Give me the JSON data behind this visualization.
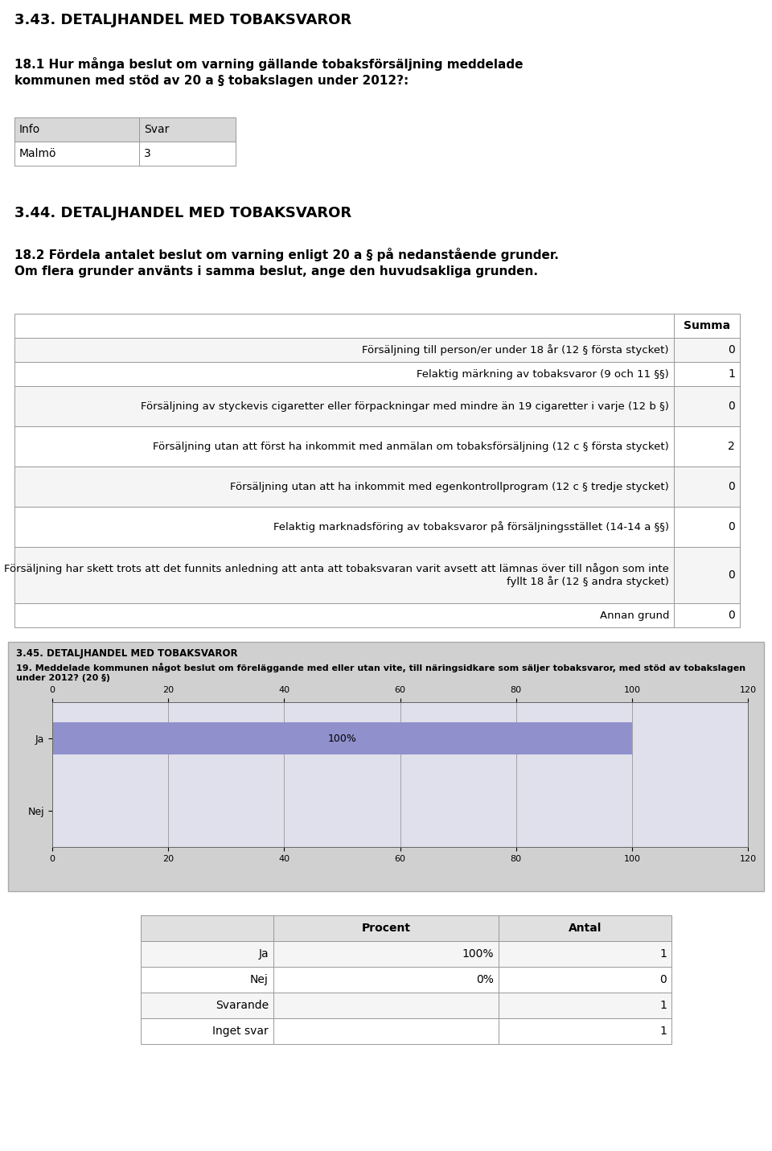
{
  "title1": "3.43. DETALJHANDEL MED TOBAKSVAROR",
  "q1": "18.1 Hur många beslut om varning gällande tobaksförsäljning meddelade\nkommunen med stöd av 20 a § tobakslagen under 2012?:",
  "table1_headers": [
    "Info",
    "Svar"
  ],
  "table1_rows": [
    [
      "Malmö",
      "3"
    ]
  ],
  "title2": "3.44. DETALJHANDEL MED TOBAKSVAROR",
  "q2": "18.2 Fördela antalet beslut om varning enligt 20 a § på nedanstående grunder. Om flera grunder använts i samma beslut, ange den huvudsakliga grunden.",
  "table2_headers": [
    "",
    "Summa"
  ],
  "table2_rows": [
    [
      "Försäljning till person/er under 18 år (12 § första stycket)",
      "0"
    ],
    [
      "Felaktig märkning av tobaksvaror (9 och 11 §§)",
      "1"
    ],
    [
      "Försäljning av styckevis cigaretter eller förpackningar med mindre än 19 cigaretter i varje (12 b §)",
      "0"
    ],
    [
      "Försäljning utan att först ha inkommit med anmälan om tobaksförsäljning (12 c § första stycket)",
      "2"
    ],
    [
      "Försäljning utan att ha inkommit med egenkontrollprogram (12 c § tredje stycket)",
      "0"
    ],
    [
      "Felaktig marknadsföring av tobaksvaror på försäljningsstället (14-14 a §§)",
      "0"
    ],
    [
      "Försäljning har skett trots att det funnits anledning att anta att tobaksvaran varit avsett att lämnas över till någon som inte fyllt 18 år (12 § andra stycket)",
      "0"
    ],
    [
      "Annan grund",
      "0"
    ]
  ],
  "title3": "3.45. DETALJHANDEL MED TOBAKSVAROR",
  "q3": "19. Meddelade kommunen något beslut om föreläggande med eller utan vite, till näringsidkare som säljer tobaksvaror, med stöd av tobakslagen under 2012? (20 §)",
  "bar_labels": [
    "Ja",
    "Nej"
  ],
  "bar_values": [
    100,
    0
  ],
  "bar_color": "#9090cc",
  "x_ticks": [
    0,
    20,
    40,
    60,
    80,
    100,
    120
  ],
  "bar_label_text": "100%",
  "table3_headers": [
    "",
    "Procent",
    "Antal"
  ],
  "table3_rows": [
    [
      "Ja",
      "100%",
      "1"
    ],
    [
      "Nej",
      "0%",
      "0"
    ],
    [
      "Svarande",
      "",
      "1"
    ],
    [
      "Inget svar",
      "",
      "1"
    ]
  ],
  "bg_color": "#ffffff",
  "header_bg": "#cccccc",
  "border_color": "#999999",
  "chart_outer_bg": "#d0d0d0",
  "chart_plot_bg": "#e0e0ec"
}
